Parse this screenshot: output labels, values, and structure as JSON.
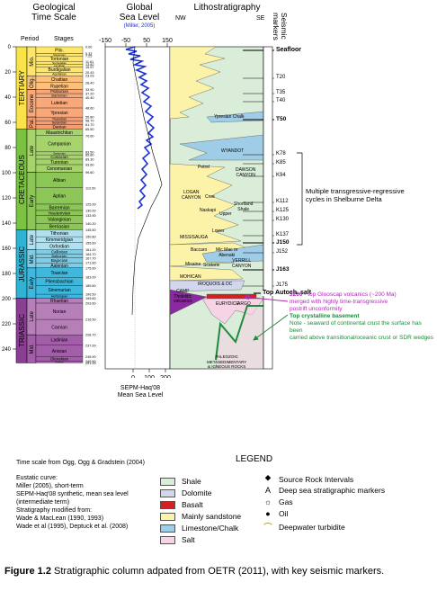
{
  "header": {
    "time_scale_title": "Geological\nTime Scale",
    "sea_level_title": "Global\nSea Level",
    "sea_level_source": "(Miller, 2005)",
    "litho_title": "Lithostratigraphy",
    "nw": "NW",
    "se": "SE",
    "seismic_title": "Seismic markers",
    "period_col": "Period",
    "stages_col": "Stages"
  },
  "sea_level_axis_top": [
    "-150",
    "-50",
    "50",
    "150"
  ],
  "sea_level_axis_bottom": [
    "0",
    "100",
    "200"
  ],
  "haq_label": "SEPM-Haq'08\nMean Sea Level",
  "age_ticks": [
    "0",
    "20",
    "40",
    "60",
    "80",
    "100",
    "120",
    "140",
    "160",
    "180",
    "200",
    "220",
    "240"
  ],
  "periods": [
    {
      "name": "TERTIARY",
      "color": "#f9e24a"
    },
    {
      "name": "CRETACEOUS",
      "color": "#7cc242"
    },
    {
      "name": "JURASSIC",
      "color": "#2fb3d3"
    },
    {
      "name": "TRIASSIC",
      "color": "#8b3f93"
    }
  ],
  "epochs": [
    {
      "name": "Mio.",
      "color": "#fde66b"
    },
    {
      "name": "Olig.",
      "color": "#fcc07a"
    },
    {
      "name": "Eocene",
      "color": "#f9a979"
    },
    {
      "name": "Pal.",
      "color": "#f89b6f"
    },
    {
      "name": "Late",
      "color": "#a6d36c"
    },
    {
      "name": "Early",
      "color": "#8cc657"
    },
    {
      "name": "Late",
      "color": "#b3e0ef"
    },
    {
      "name": "Mid.",
      "color": "#7dcde6"
    },
    {
      "name": "Early",
      "color": "#3fb8dd"
    },
    {
      "name": "Late",
      "color": "#b67fb8"
    },
    {
      "name": "Mid.",
      "color": "#a25ea8"
    }
  ],
  "stages": [
    {
      "name": "Plio.",
      "age": "5.33"
    },
    {
      "name": "Messinian",
      "age": "7.25"
    },
    {
      "name": "Tortonian",
      "age": "11.61"
    },
    {
      "name": "Serravallian",
      "age": "13.82"
    },
    {
      "name": "Langhian",
      "age": "15.97"
    },
    {
      "name": "Burdigalian",
      "age": "20.43"
    },
    {
      "name": "Aquitanian",
      "age": "23.03"
    },
    {
      "name": "Chattian",
      "age": "28.40"
    },
    {
      "name": "Rupelian",
      "age": "33.90"
    },
    {
      "name": "Priabonian",
      "age": "37.20"
    },
    {
      "name": "Bartonian",
      "age": "40.40"
    },
    {
      "name": "Lutetian",
      "age": "48.60"
    },
    {
      "name": "Ypresian",
      "age": "55.80"
    },
    {
      "name": "Thanetian",
      "age": "58.70"
    },
    {
      "name": "Selandian",
      "age": "61.70"
    },
    {
      "name": "Danian",
      "age": "65.50"
    },
    {
      "name": "Maastrichtian",
      "age": "70.60"
    },
    {
      "name": "Campanian",
      "age": "83.50"
    },
    {
      "name": "Santonian",
      "age": "85.80"
    },
    {
      "name": "Coniacian",
      "age": "89.30"
    },
    {
      "name": "Turonian",
      "age": "93.60"
    },
    {
      "name": "Cenomanian",
      "age": "99.60"
    },
    {
      "name": "Albian",
      "age": "112.00"
    },
    {
      "name": "Aptian",
      "age": "125.00"
    },
    {
      "name": "Barremian",
      "age": "130.00"
    },
    {
      "name": "Hauterivian",
      "age": "133.90"
    },
    {
      "name": "Valanginian",
      "age": "140.20"
    },
    {
      "name": "Berriasian",
      "age": "145.50"
    },
    {
      "name": "Tithonian",
      "age": "150.80"
    },
    {
      "name": "Kimmeridgian",
      "age": "155.60"
    },
    {
      "name": "Oxfordian",
      "age": "161.20"
    },
    {
      "name": "Callovian",
      "age": "164.70"
    },
    {
      "name": "Bathonian",
      "age": "167.70"
    },
    {
      "name": "Bajocian",
      "age": "171.60"
    },
    {
      "name": "Aalenian",
      "age": "175.60"
    },
    {
      "name": "Toarcian",
      "age": "183.00"
    },
    {
      "name": "Pliensbachian",
      "age": "189.60"
    },
    {
      "name": "Sinemurian",
      "age": "196.50"
    },
    {
      "name": "Hettangian",
      "age": "199.60"
    },
    {
      "name": "Rhaetian",
      "age": "203.60"
    },
    {
      "name": "Norian",
      "age": "216.50"
    },
    {
      "name": "Carnian",
      "age": "228.70"
    },
    {
      "name": "Ladinian",
      "age": "237.00"
    },
    {
      "name": "Anisian",
      "age": "245.90"
    },
    {
      "name": "Olenekian",
      "age": "249.50"
    },
    {
      "name": "Induan",
      "age": "251.00"
    }
  ],
  "formations": [
    {
      "name": "Ypresian Chalk"
    },
    {
      "name": "WYANDOT"
    },
    {
      "name": "DAWSON\nCANYON"
    },
    {
      "name": "Petrel"
    },
    {
      "name": "LOGAN\nCANYON"
    },
    {
      "name": "Naskapi"
    },
    {
      "name": "Shortland\nShale"
    },
    {
      "name": "Cree"
    },
    {
      "name": "Upper"
    },
    {
      "name": "Lower"
    },
    {
      "name": "MISSISAUGA"
    },
    {
      "name": "Mic Mac or\nAbenaki"
    },
    {
      "name": "Baccaro"
    },
    {
      "name": "Misaine"
    },
    {
      "name": "Scatarie"
    },
    {
      "name": "VERRILL\nCANYON"
    },
    {
      "name": "MOHICAN"
    },
    {
      "name": "IROQUOIS & DC"
    },
    {
      "name": "CAMP\nTholeiitic\nvolcanics"
    },
    {
      "name": "EURYDICE"
    },
    {
      "name": "ARGO"
    },
    {
      "name": "PALEOZOIC\nMETASEDIMENTARY\n& IGNEOUS ROCKS"
    }
  ],
  "seismic_markers": [
    {
      "label": "Seafloor",
      "bold": true
    },
    {
      "label": "T20",
      "bold": false
    },
    {
      "label": "T35",
      "bold": false
    },
    {
      "label": "T40",
      "bold": false
    },
    {
      "label": "T50",
      "bold": true
    },
    {
      "label": "K78",
      "bold": false
    },
    {
      "label": "K85",
      "bold": false
    },
    {
      "label": "K94",
      "bold": false
    },
    {
      "label": "K112",
      "bold": false
    },
    {
      "label": "K125",
      "bold": false
    },
    {
      "label": "K130",
      "bold": false
    },
    {
      "label": "K137",
      "bold": false
    },
    {
      "label": "J150",
      "bold": true
    },
    {
      "label": "J152",
      "bold": false
    },
    {
      "label": "J163",
      "bold": true
    },
    {
      "label": "J175",
      "bold": false
    },
    {
      "label": "Top Autoch. salt",
      "bold": true
    }
  ],
  "annotations": {
    "cycles": "Multiple transgressive-regressive\ncycles in Shelburne Delta",
    "j200_title": "J200",
    "j200_text": " - top Glooscap volcanics (~200 Ma)\nmerged with highly time-transgressive\npostrift unconformity",
    "basement_title": "Top crystalline basement",
    "basement_note": "Note - seaward of continental crust the surface has been\ncarried above transitional/oceanic crust or SDR wedges"
  },
  "legend": {
    "title": "LEGEND",
    "lithology": [
      {
        "label": "Shale",
        "color": "#d9edd9"
      },
      {
        "label": "Dolomite",
        "color": "#d3d7ee"
      },
      {
        "label": "Basalt",
        "color": "#d42020"
      },
      {
        "label": "Mainly sandstone",
        "color": "#fdf3a8"
      },
      {
        "label": "Limestone/Chalk",
        "color": "#9fcde8"
      },
      {
        "label": "Salt",
        "color": "#f6d4e6"
      }
    ],
    "symbols": [
      {
        "label": "Source Rock Intervals",
        "icon": "source-rock-icon"
      },
      {
        "label": "Deep sea stratigraphic markers",
        "icon": "deep-sea-marker-icon"
      },
      {
        "label": "Gas",
        "icon": "gas-icon"
      },
      {
        "label": "Oil",
        "icon": "oil-icon"
      },
      {
        "label": "Deepwater turbidite",
        "icon": "turbidite-icon"
      }
    ]
  },
  "notes": [
    "Time scale from Ogg, Ogg & Gradstein (2004)",
    "Eustatic curve:",
    "Miller (2005), short-term",
    "SEPM-Haq'08 synthetic, mean sea level",
    "(intermediate term)",
    "Stratigraphy modified from:",
    "Wade & MacLean (1990, 1993)",
    "Wade et al (1995), Deptuck et al. (2008)"
  ],
  "caption": {
    "figure_label": "Figure 1.2",
    "text": "  Stratigraphic column adpated from OETR (2011), with key seismic markers."
  }
}
